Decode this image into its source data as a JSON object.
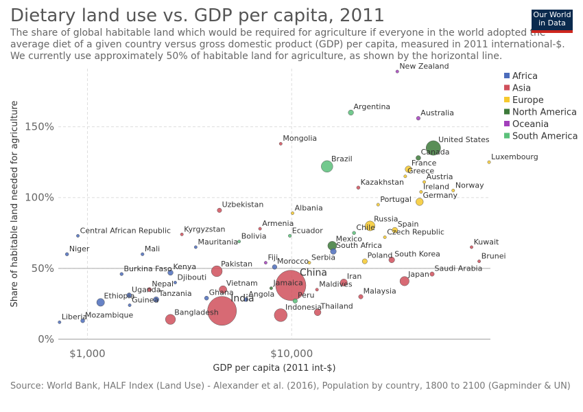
{
  "chart_data": {
    "type": "scatter",
    "title": "Dietary land use vs. GDP per capita, 2011",
    "subtitle": "The share of global habitable land which would be required for agriculture if everyone in the world adopted the average diet of a given country versus gross domestic product (GDP) per capita, measured in 2011 international-$. We currently use approximately 50% of habitable land for agriculture, as shown by the horizontal line.",
    "logo": [
      "Our World",
      "in Data"
    ],
    "source": "Source: World Bank, HALF Index (Land Use) - Alexander et al. (2016), Population by country, 1800 to 2100 (Gapminder & UN)",
    "x_label": "GDP per capita (2011 int-$)",
    "y_label": "Share of habitable land needed for agriculture",
    "xscale": "log",
    "xlim": [
      720,
      94000
    ],
    "xticks": [
      {
        "value": 1000,
        "label": "$1,000"
      },
      {
        "value": 10000,
        "label": "$10,000"
      }
    ],
    "ylim": [
      0,
      191
    ],
    "yticks": [
      {
        "value": 0,
        "label": "0%"
      },
      {
        "value": 50,
        "label": "50%"
      },
      {
        "value": 100,
        "label": "100%"
      },
      {
        "value": 150,
        "label": "150%"
      }
    ],
    "hline": 50,
    "grid": true,
    "legend": "right",
    "series": [
      {
        "name": "Africa",
        "color": "#4c6cbb",
        "labels": [
          "Central African Republic",
          "Niger",
          "Mali",
          "Mauritania",
          "South Africa",
          "Burkina Faso",
          "Kenya",
          "Morocco",
          "Djibouti",
          "Uganda",
          "Tanzania",
          "Ethiopia",
          "Angola",
          "Ghana",
          "Guinea",
          "Liberia",
          "Mozambique"
        ],
        "x": [
          898,
          794,
          1860,
          3390,
          16000,
          1470,
          2550,
          8250,
          2690,
          1600,
          2170,
          1160,
          5980,
          3830,
          1610,
          730,
          948
        ],
        "values": [
          73,
          60,
          60,
          65,
          62,
          46,
          47,
          51,
          40,
          31,
          28,
          26,
          28,
          29,
          24,
          12,
          13
        ],
        "sizes": [
          4,
          17,
          15,
          4,
          51,
          16,
          42,
          32,
          1,
          35,
          46,
          90,
          24,
          25,
          11,
          4,
          24
        ]
      },
      {
        "name": "Asia",
        "color": "#d0505c",
        "labels": [
          "Mongolia",
          "Kazakhstan",
          "Uzbekistan",
          "Armenia",
          "Kyrgyzstan",
          "Kuwait",
          "South Korea",
          "Brunei",
          "Pakistan",
          "China",
          "Saudi Arabia",
          "Japan",
          "Iran",
          "Nepal",
          "Vietnam",
          "Maldives",
          "Malaysia",
          "India",
          "Indonesia",
          "Thailand",
          "Bangladesh"
        ],
        "x": [
          8840,
          21200,
          4430,
          7000,
          2900,
          76000,
          30900,
          82800,
          4300,
          9900,
          48700,
          35700,
          18000,
          2010,
          4610,
          13300,
          21800,
          4560,
          8840,
          13400,
          2550
        ],
        "values": [
          138,
          107,
          91,
          78,
          74,
          65,
          56,
          55,
          48,
          38,
          46,
          41,
          40,
          35,
          35,
          35,
          30,
          20,
          17,
          19,
          14
        ],
        "sizes": [
          3,
          17,
          29,
          3,
          6,
          3,
          50,
          0.4,
          175,
          1350,
          28,
          127,
          75,
          27,
          88,
          0.3,
          29,
          1240,
          245,
          67,
          150
        ]
      },
      {
        "name": "Europe",
        "color": "#f6c92e",
        "labels": [
          "France",
          "Luxembourg",
          "Greece",
          "Austria",
          "Ireland",
          "Norway",
          "Germany",
          "Portugal",
          "Albania",
          "Russia",
          "Spain",
          "Czech Republic",
          "Poland",
          "Serbia"
        ],
        "x": [
          37300,
          92600,
          36000,
          44600,
          43000,
          61800,
          42300,
          26500,
          10100,
          24200,
          32000,
          28600,
          22800,
          12200
        ],
        "values": [
          120,
          125,
          115,
          111,
          104,
          105,
          97,
          95,
          89,
          80,
          77,
          72,
          55,
          54
        ],
        "sizes": [
          63,
          0.5,
          11,
          8,
          5,
          5,
          81,
          10,
          3,
          143,
          46,
          10,
          38,
          7
        ]
      },
      {
        "name": "North America",
        "color": "#3d7a3a",
        "labels": [
          "United States",
          "Canada",
          "Mexico",
          "Jamaica"
        ],
        "x": [
          49400,
          41700,
          15800,
          7940
        ],
        "values": [
          135,
          128,
          66,
          36
        ],
        "sizes": [
          312,
          34,
          117,
          3
        ]
      },
      {
        "name": "Oceania",
        "color": "#a23fbb",
        "labels": [
          "New Zealand",
          "Australia",
          "Fiji"
        ],
        "x": [
          32900,
          41700,
          7460
        ],
        "values": [
          189,
          156,
          54
        ],
        "sizes": [
          4,
          22,
          1
        ]
      },
      {
        "name": "South America",
        "color": "#5bc07a",
        "labels": [
          "Argentina",
          "Brazil",
          "Ecuador",
          "Chile",
          "Bolivia",
          "Peru"
        ],
        "x": [
          19500,
          14900,
          9800,
          20200,
          5530,
          10400
        ],
        "values": [
          160,
          122,
          73,
          75,
          69,
          27
        ],
        "sizes": [
          41,
          197,
          15,
          17,
          10,
          30
        ]
      }
    ]
  }
}
